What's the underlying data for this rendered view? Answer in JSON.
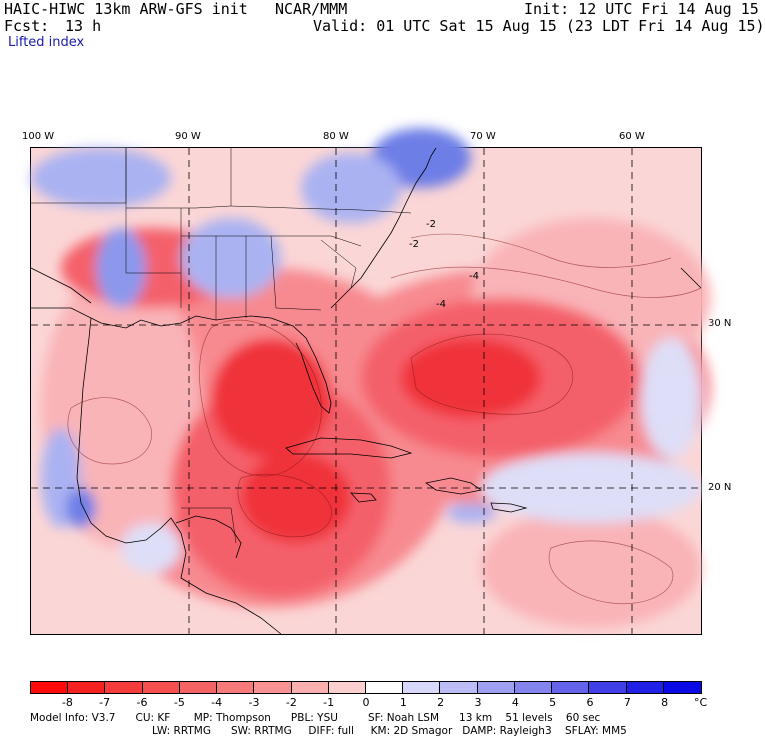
{
  "header": {
    "model": "HAIC-HIWC 13km ARW-GFS init",
    "org": "NCAR/MMM",
    "init": "Init: 12 UTC Fri 14 Aug 15",
    "fcst_label": "Fcst:",
    "fcst_value": "13 h",
    "valid": "Valid: 01 UTC Sat 15 Aug 15 (23 LDT Fri 14 Aug 15)",
    "field": "Lifted index"
  },
  "map": {
    "lon_labels": [
      "100 W",
      "90 W",
      "80 W",
      "70 W",
      "60 W"
    ],
    "lat_labels": [
      "30 N",
      "20 N"
    ],
    "contour_labels": [
      "-2",
      "-4",
      "-4",
      "-2"
    ],
    "field_colors": {
      "strong_unstable": "#f0303a",
      "unstable": "#f4616a",
      "weak_unstable": "#f78a90",
      "slight_unstable": "#f9b4b8",
      "near_neutral": "#fbd6d6",
      "slight_stable": "#dedef8",
      "stable": "#aab2f2",
      "strong_stable": "#6d7ee6"
    }
  },
  "colorbar": {
    "ticks": [
      "-8",
      "-7",
      "-6",
      "-5",
      "-4",
      "-3",
      "-2",
      "-1",
      "0",
      "1",
      "2",
      "3",
      "4",
      "5",
      "6",
      "7",
      "8"
    ],
    "unit": "°C",
    "colors": [
      "#ff0a0a",
      "#f52020",
      "#f53c3c",
      "#f55050",
      "#f56464",
      "#f77a7a",
      "#f99393",
      "#fbb0b0",
      "#fdd0d0",
      "#ffffff",
      "#d8d8fa",
      "#bcbcf6",
      "#a0a0f2",
      "#8484ee",
      "#6464ea",
      "#4040e6",
      "#2020e6",
      "#0a0ae6"
    ]
  },
  "model_info": {
    "line1": "Model Info: V3.7      CU: KF       MP: Thompson      PBL: YSU         SF: Noah LSM      13 km    51 levels    60 sec",
    "line2": "LW: RRTMG      SW: RRTMG     DIFF: full     KM: 2D Smagor   DAMP: Rayleigh3    SFLAY: MM5"
  }
}
